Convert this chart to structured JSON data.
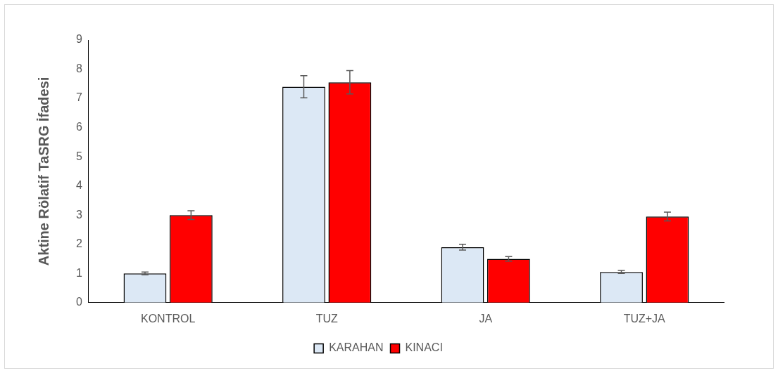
{
  "chart_data": {
    "type": "bar",
    "ylabel": "Aktine Rölatif TaSRG İfadesi",
    "categories": [
      "KONTROL",
      "TUZ",
      "JA",
      "TUZ+JA"
    ],
    "series": [
      {
        "name": "KARAHAN",
        "color": "#dce8f5",
        "values": [
          1.0,
          7.4,
          1.9,
          1.05
        ],
        "errors": [
          0.05,
          0.38,
          0.1,
          0.05
        ]
      },
      {
        "name": "KINACI",
        "color": "#ff0000",
        "values": [
          3.0,
          7.55,
          1.5,
          2.95
        ],
        "errors": [
          0.15,
          0.4,
          0.08,
          0.15
        ]
      }
    ],
    "ylim": [
      0,
      9
    ],
    "yticks": [
      0,
      1,
      2,
      3,
      4,
      5,
      6,
      7,
      8,
      9
    ],
    "grid": false,
    "legend": "bottom"
  }
}
